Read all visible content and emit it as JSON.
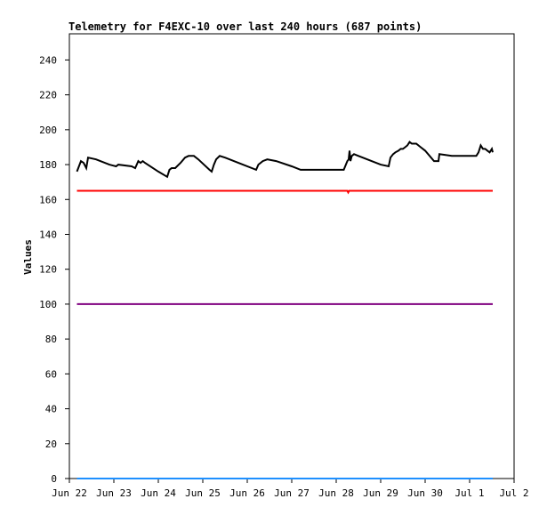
{
  "chart_data": {
    "type": "line",
    "title": "Telemetry for F4EXC-10 over last 240 hours (687 points)",
    "xlabel": "",
    "ylabel": "Values",
    "ylim": [
      0,
      255
    ],
    "yticks": [
      0,
      20,
      40,
      60,
      80,
      100,
      120,
      140,
      160,
      180,
      200,
      220,
      240
    ],
    "xlim": [
      0,
      10
    ],
    "xticks": [
      {
        "x": 0,
        "label": "Jun 22"
      },
      {
        "x": 1,
        "label": "Jun 23"
      },
      {
        "x": 2,
        "label": "Jun 24"
      },
      {
        "x": 3,
        "label": "Jun 25"
      },
      {
        "x": 4,
        "label": "Jun 26"
      },
      {
        "x": 5,
        "label": "Jun 27"
      },
      {
        "x": 6,
        "label": "Jun 28"
      },
      {
        "x": 7,
        "label": "Jun 29"
      },
      {
        "x": 8,
        "label": "Jun 30"
      },
      {
        "x": 9,
        "label": "Jul 1"
      },
      {
        "x": 10,
        "label": "Jul 2"
      }
    ],
    "grid": false,
    "series": [
      {
        "color": "#000000",
        "points": [
          [
            0.17,
            176
          ],
          [
            0.2,
            178
          ],
          [
            0.26,
            182
          ],
          [
            0.32,
            181
          ],
          [
            0.38,
            178
          ],
          [
            0.42,
            184
          ],
          [
            0.6,
            183
          ],
          [
            0.9,
            180
          ],
          [
            1.05,
            179
          ],
          [
            1.1,
            180
          ],
          [
            1.4,
            179
          ],
          [
            1.48,
            178
          ],
          [
            1.55,
            182
          ],
          [
            1.6,
            181
          ],
          [
            1.65,
            182
          ],
          [
            1.7,
            181
          ],
          [
            2.0,
            176
          ],
          [
            2.2,
            173
          ],
          [
            2.25,
            177
          ],
          [
            2.3,
            178
          ],
          [
            2.38,
            178
          ],
          [
            2.5,
            181
          ],
          [
            2.6,
            184
          ],
          [
            2.68,
            185
          ],
          [
            2.76,
            185
          ],
          [
            2.8,
            185
          ],
          [
            2.9,
            183
          ],
          [
            3.15,
            177
          ],
          [
            3.2,
            176
          ],
          [
            3.25,
            180
          ],
          [
            3.3,
            183
          ],
          [
            3.38,
            185
          ],
          [
            3.5,
            184
          ],
          [
            3.8,
            181
          ],
          [
            4.2,
            177
          ],
          [
            4.25,
            180
          ],
          [
            4.35,
            182
          ],
          [
            4.45,
            183
          ],
          [
            4.65,
            182
          ],
          [
            5.0,
            179
          ],
          [
            5.2,
            177
          ],
          [
            5.5,
            177
          ],
          [
            5.8,
            177
          ],
          [
            6.17,
            177
          ],
          [
            6.25,
            182
          ],
          [
            6.28,
            183
          ],
          [
            6.3,
            188
          ],
          [
            6.32,
            182
          ],
          [
            6.35,
            185
          ],
          [
            6.4,
            186
          ],
          [
            6.5,
            185
          ],
          [
            7.0,
            180
          ],
          [
            7.18,
            179
          ],
          [
            7.22,
            184
          ],
          [
            7.28,
            186
          ],
          [
            7.33,
            187
          ],
          [
            7.4,
            188
          ],
          [
            7.45,
            189
          ],
          [
            7.5,
            189
          ],
          [
            7.55,
            190
          ],
          [
            7.6,
            191
          ],
          [
            7.65,
            193
          ],
          [
            7.7,
            192
          ],
          [
            7.8,
            192
          ],
          [
            7.9,
            190
          ],
          [
            8.0,
            188
          ],
          [
            8.2,
            182
          ],
          [
            8.3,
            182
          ],
          [
            8.32,
            186
          ],
          [
            8.6,
            185
          ],
          [
            9.0,
            185
          ],
          [
            9.15,
            185
          ],
          [
            9.2,
            187
          ],
          [
            9.25,
            191
          ],
          [
            9.3,
            189
          ],
          [
            9.35,
            189
          ],
          [
            9.4,
            188
          ],
          [
            9.45,
            187
          ],
          [
            9.5,
            189
          ],
          [
            9.52,
            187
          ]
        ]
      },
      {
        "color": "#ff0000",
        "points": [
          [
            0.17,
            165
          ],
          [
            6.25,
            165
          ],
          [
            6.27,
            164
          ],
          [
            6.29,
            165
          ],
          [
            9.52,
            165
          ]
        ]
      },
      {
        "color": "#800080",
        "points": [
          [
            0.17,
            100
          ],
          [
            9.52,
            100
          ]
        ]
      },
      {
        "color": "#1e90ff",
        "points": [
          [
            0.17,
            0
          ],
          [
            9.52,
            0
          ]
        ]
      }
    ]
  }
}
